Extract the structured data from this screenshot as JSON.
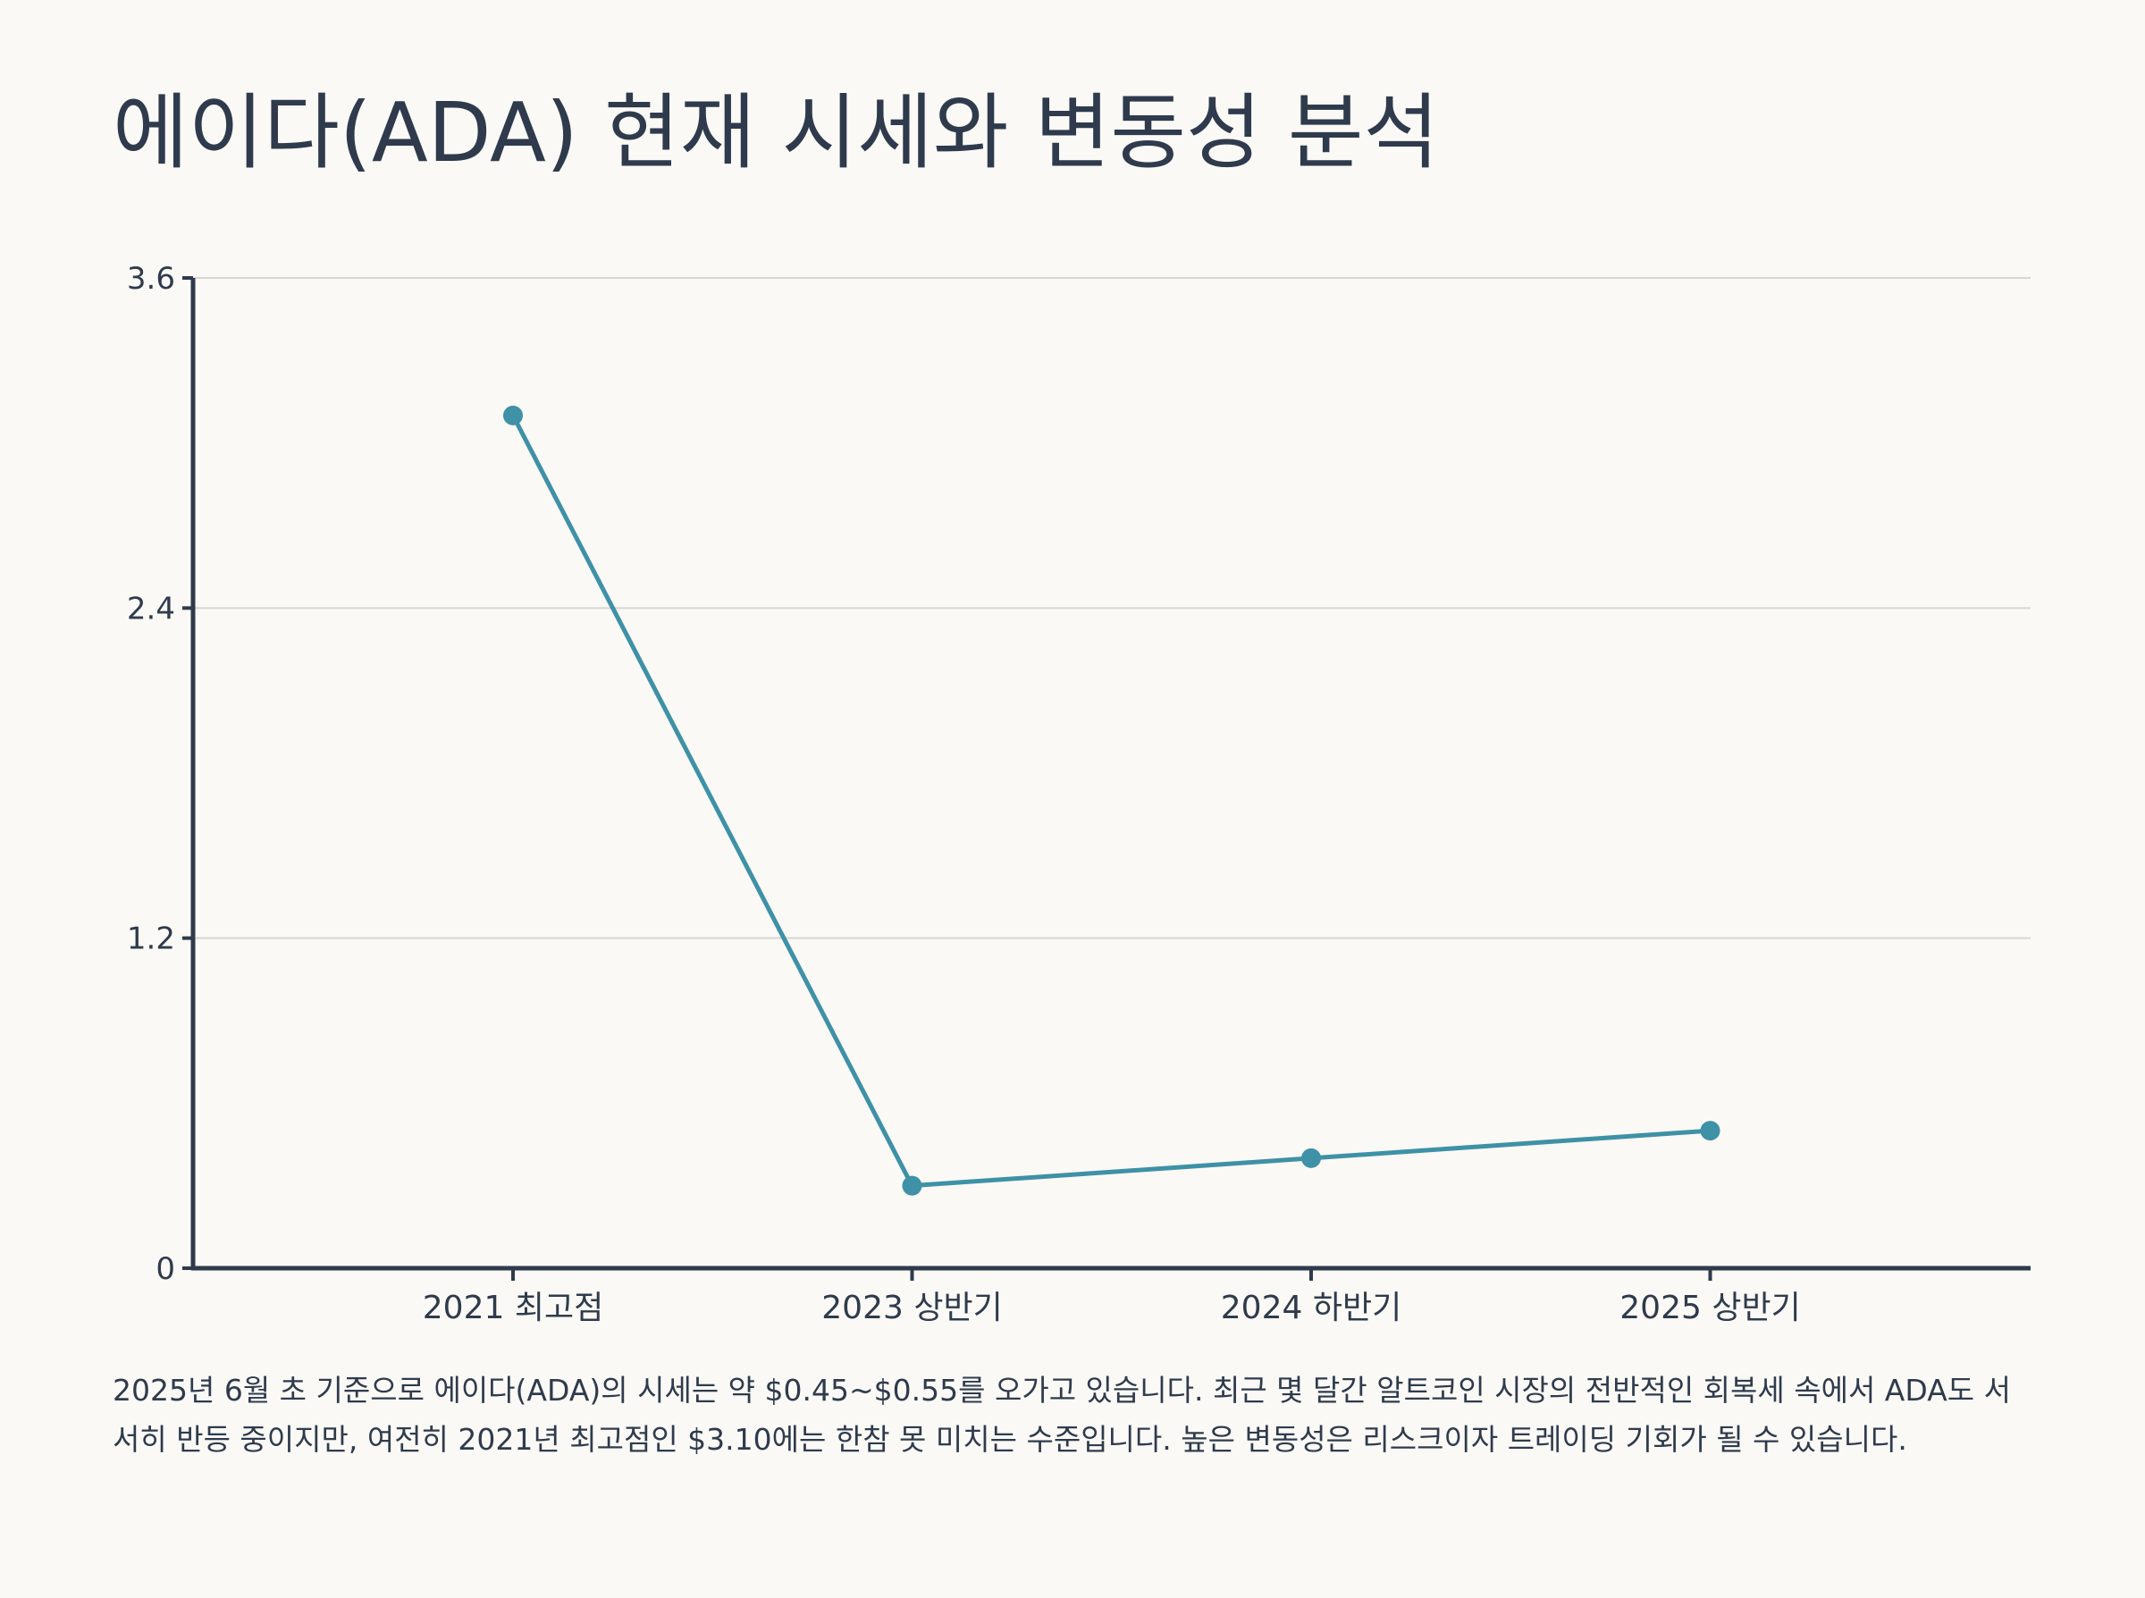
{
  "title": "에이다(ADA) 현재 시세와 변동성 분석",
  "description": "2025년 6월 초 기준으로 에이다(ADA)의 시세는 약 $0.45~$0.55를 오가고 있습니다. 최근 몇 달간 알트코인 시장의 전반적인 회복세 속에서 ADA도 서서히 반등 중이지만, 여전히 2021년 최고점인 $3.10에는 한참 못 미치는 수준입니다. 높은 변동성은 리스크이자 트레이딩 기회가 될 수 있습니다.",
  "chart_data": {
    "type": "line",
    "categories": [
      "2021 최고점",
      "2023 상반기",
      "2024 하반기",
      "2025 상반기"
    ],
    "values": [
      3.1,
      0.3,
      0.4,
      0.5
    ],
    "ylim": [
      0,
      3.6
    ],
    "yticks": [
      0,
      1.2,
      2.4,
      3.6
    ],
    "ytick_labels": [
      "0",
      "1.2",
      "2.4",
      "3.6"
    ],
    "grid": true,
    "line_color": "#3e91a6",
    "axis_color": "#2f3b4c",
    "grid_color": "#d6d6d3"
  }
}
